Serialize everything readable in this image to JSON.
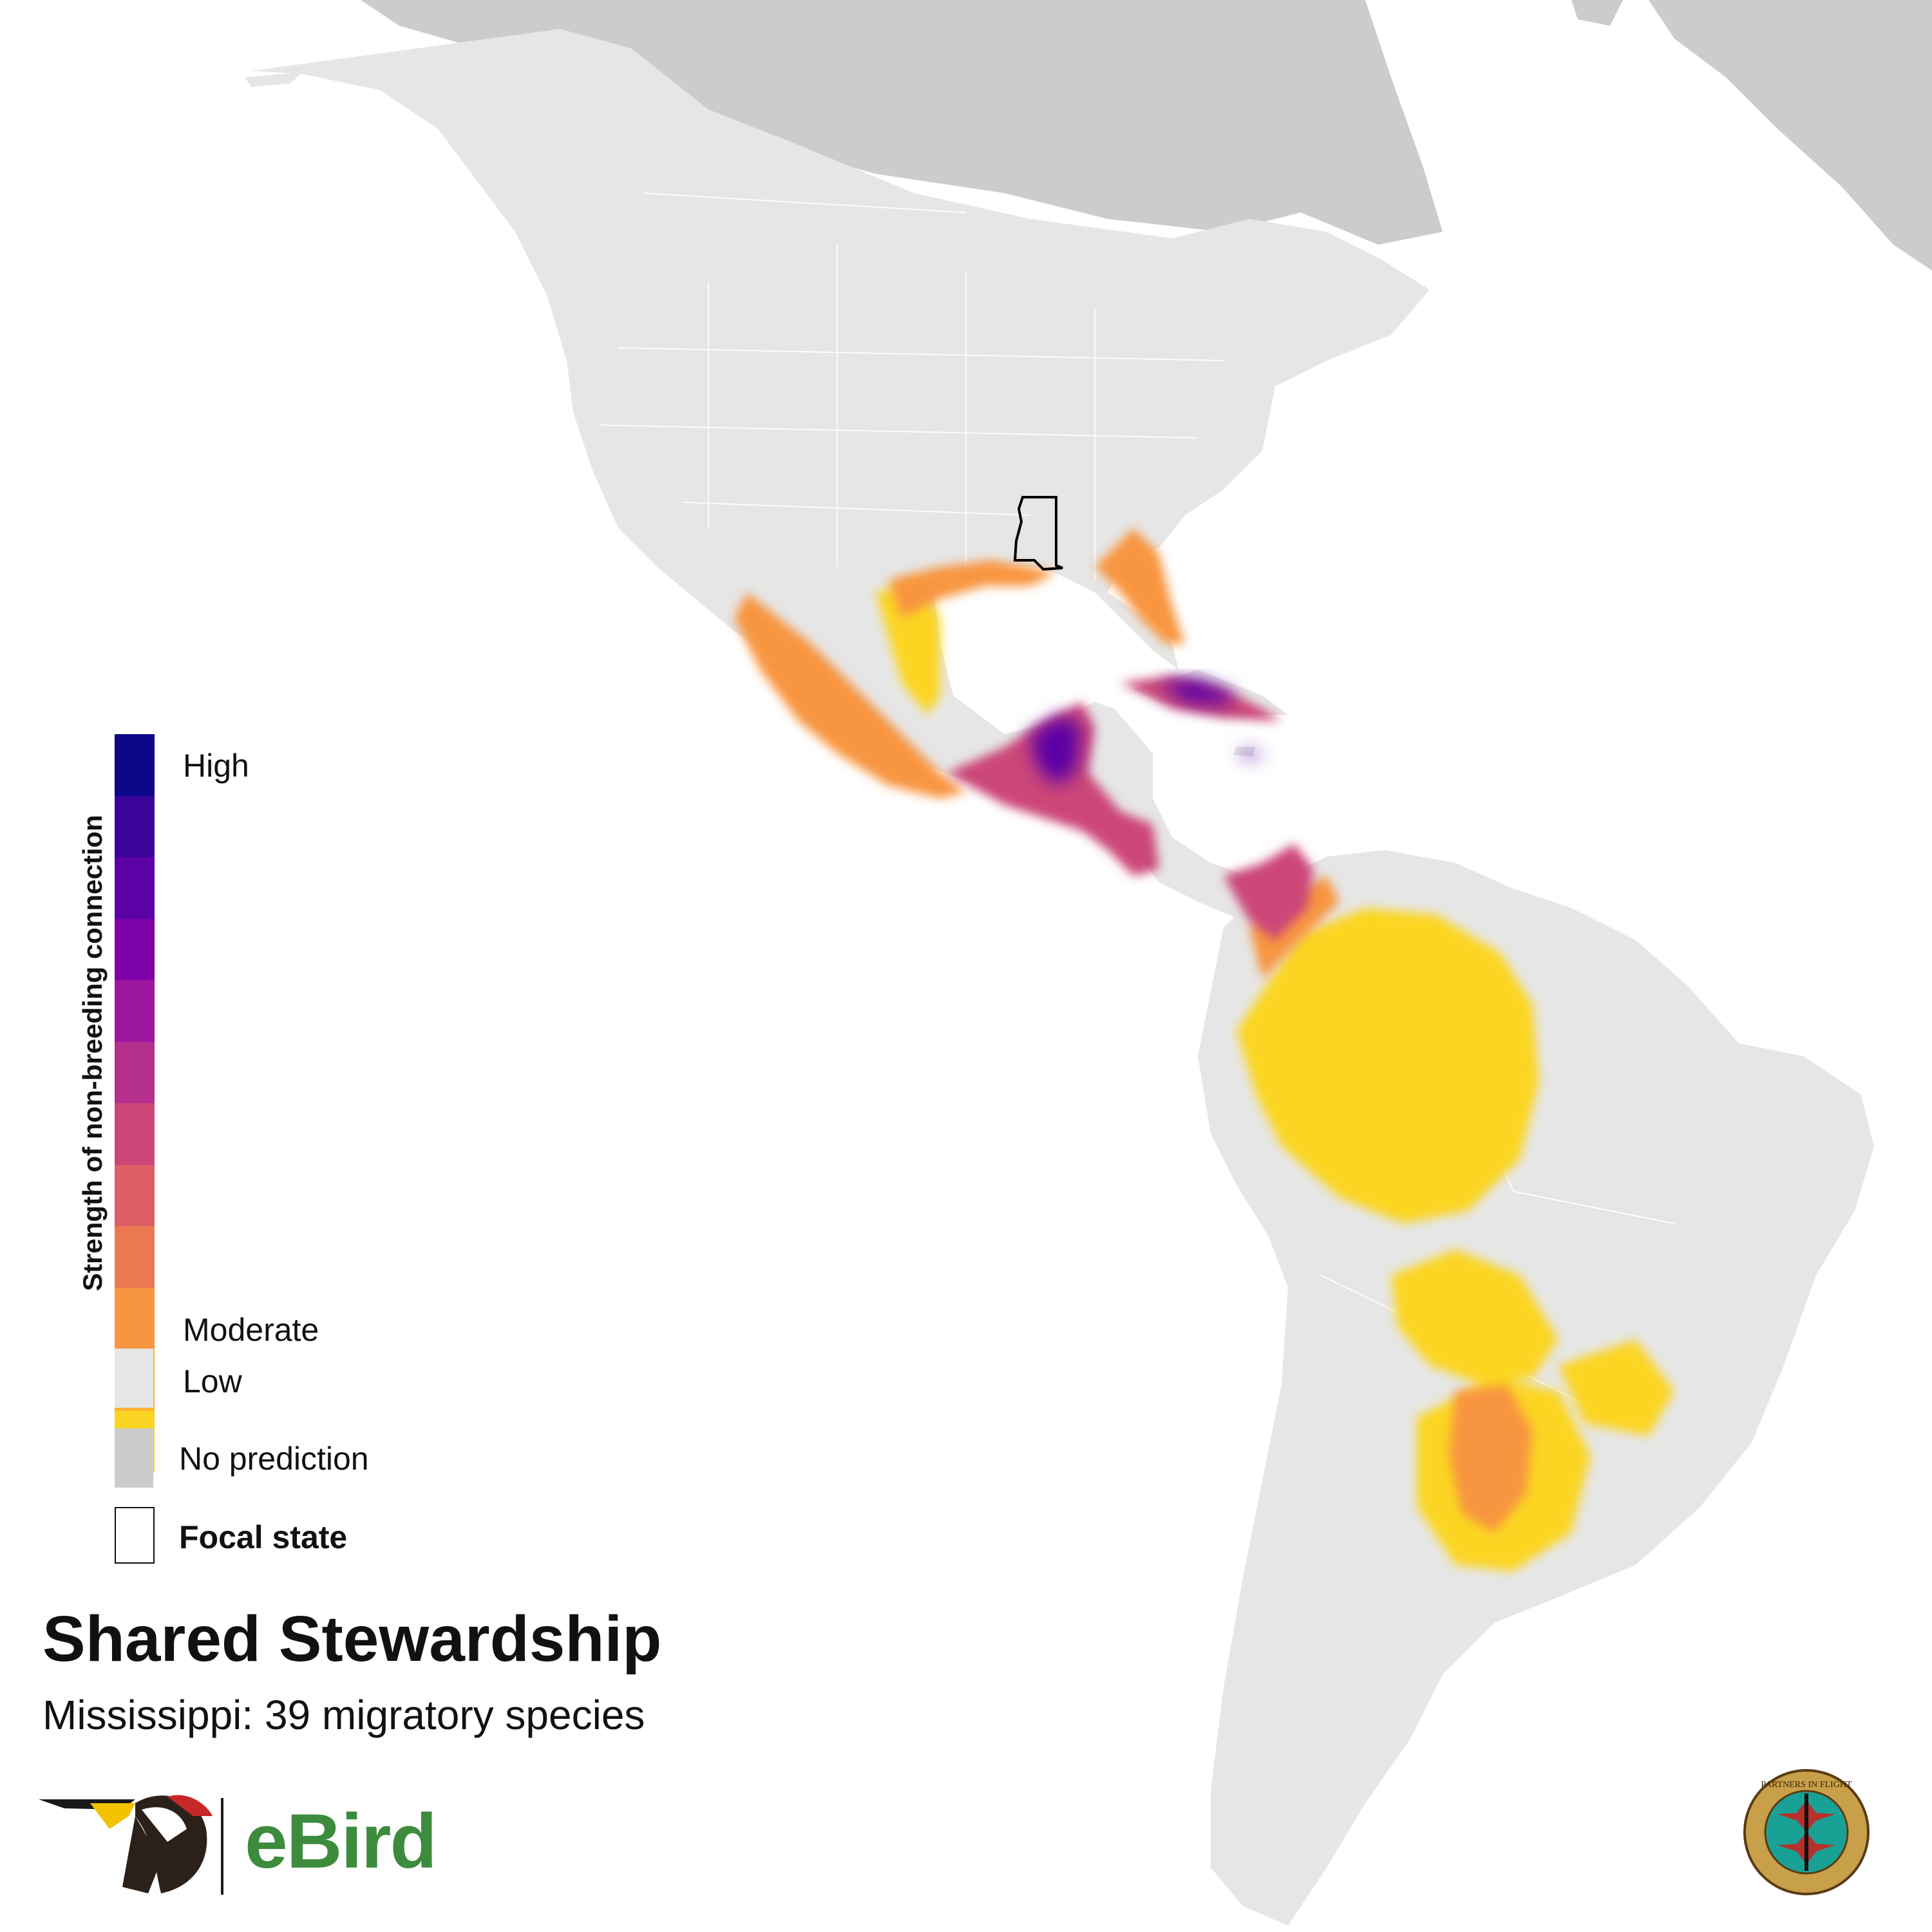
{
  "legend": {
    "title": "Strength of non-breeding connection",
    "ramp_colors": [
      "#0d0887",
      "#3a049a",
      "#5c01a6",
      "#7e03a8",
      "#9c179e",
      "#b52f8c",
      "#cc4778",
      "#de5f65",
      "#ed7953",
      "#f89540",
      "#fdb42f",
      "#fbd524"
    ],
    "high_label": "High",
    "moderate_label": "Moderate",
    "low_label": "Low",
    "low_color": "#e6e6e6",
    "no_prediction_label": "No prediction",
    "no_prediction_color": "#cccccc",
    "focal_label": "Focal state"
  },
  "title": "Shared Stewardship",
  "subtitle": "Mississippi: 39 migratory species",
  "logos": {
    "ebird_text": "eBird",
    "ebird_icon": "ebird-woodpecker-logo",
    "pif_icon": "partners-in-flight-seal",
    "pif_seal_text": "PARTNERS IN FLIGHT"
  }
}
